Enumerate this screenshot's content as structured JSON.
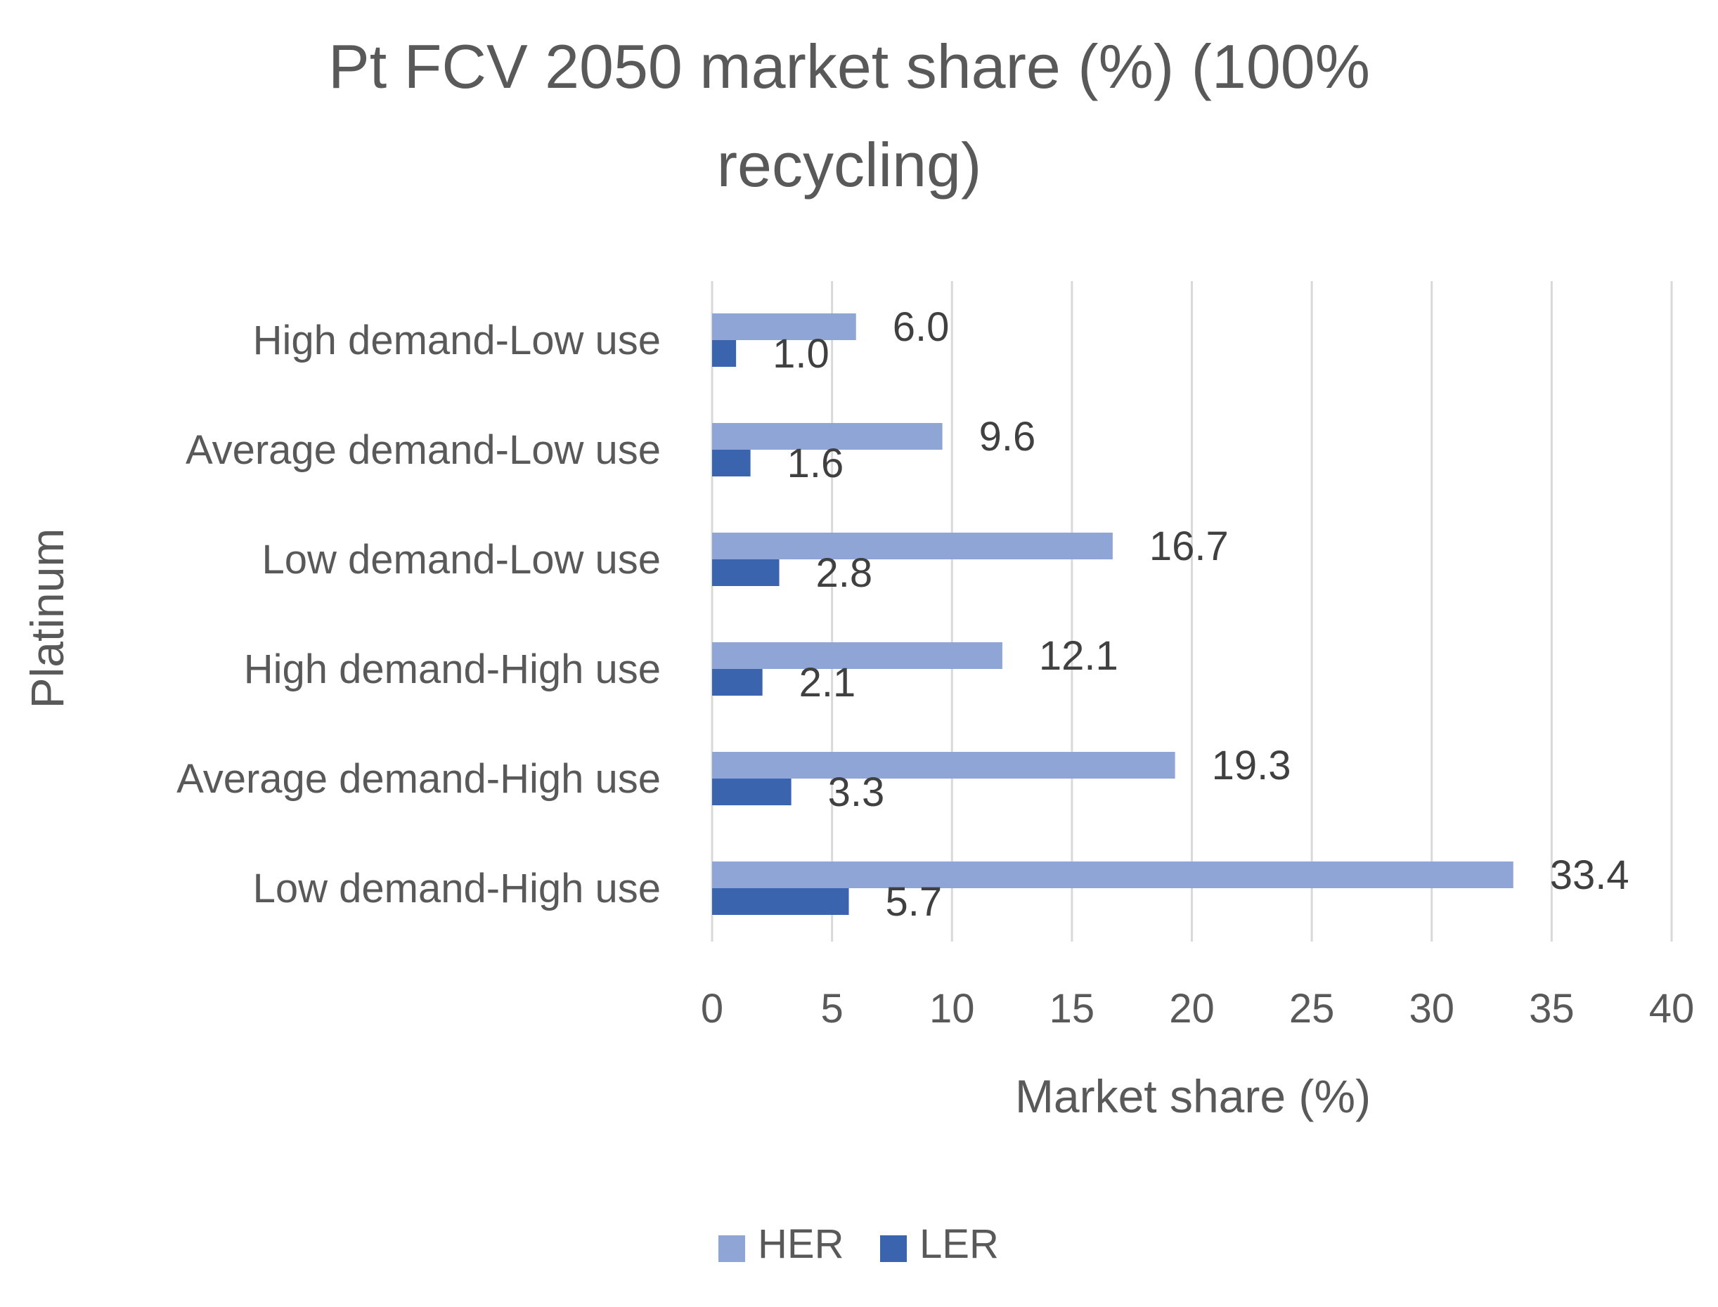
{
  "chart_data": {
    "type": "bar",
    "orientation": "horizontal",
    "title_lines": [
      "Pt FCV 2050 market share (%) (100%",
      "recycling)"
    ],
    "title": "Pt FCV 2050 market share (%) (100% recycling)",
    "xlabel": "Market share (%)",
    "ylabel": "Platinum",
    "xlim": [
      0,
      40
    ],
    "xticks": [
      0,
      5,
      10,
      15,
      20,
      25,
      30,
      35,
      40
    ],
    "grid": true,
    "legend_position": "bottom",
    "categories": [
      "High demand-Low use",
      "Average demand-Low use",
      "Low demand-Low use",
      "High demand-High use",
      "Average demand-High use",
      "Low demand-High use"
    ],
    "series": [
      {
        "name": "HER",
        "color": "#8FA5D6",
        "values": [
          6.0,
          9.6,
          16.7,
          12.1,
          19.3,
          33.4
        ],
        "labels": [
          "6.0",
          "9.6",
          "16.7",
          "12.1",
          "19.3",
          "33.4"
        ]
      },
      {
        "name": "LER",
        "color": "#3A64AE",
        "values": [
          1.0,
          1.6,
          2.8,
          2.1,
          3.3,
          5.7
        ],
        "labels": [
          "1.0",
          "1.6",
          "2.8",
          "2.1",
          "3.3",
          "5.7"
        ]
      }
    ]
  },
  "colors": {
    "gridline": "#D9D9D9",
    "text": "#595959",
    "data_label": "#404040"
  }
}
